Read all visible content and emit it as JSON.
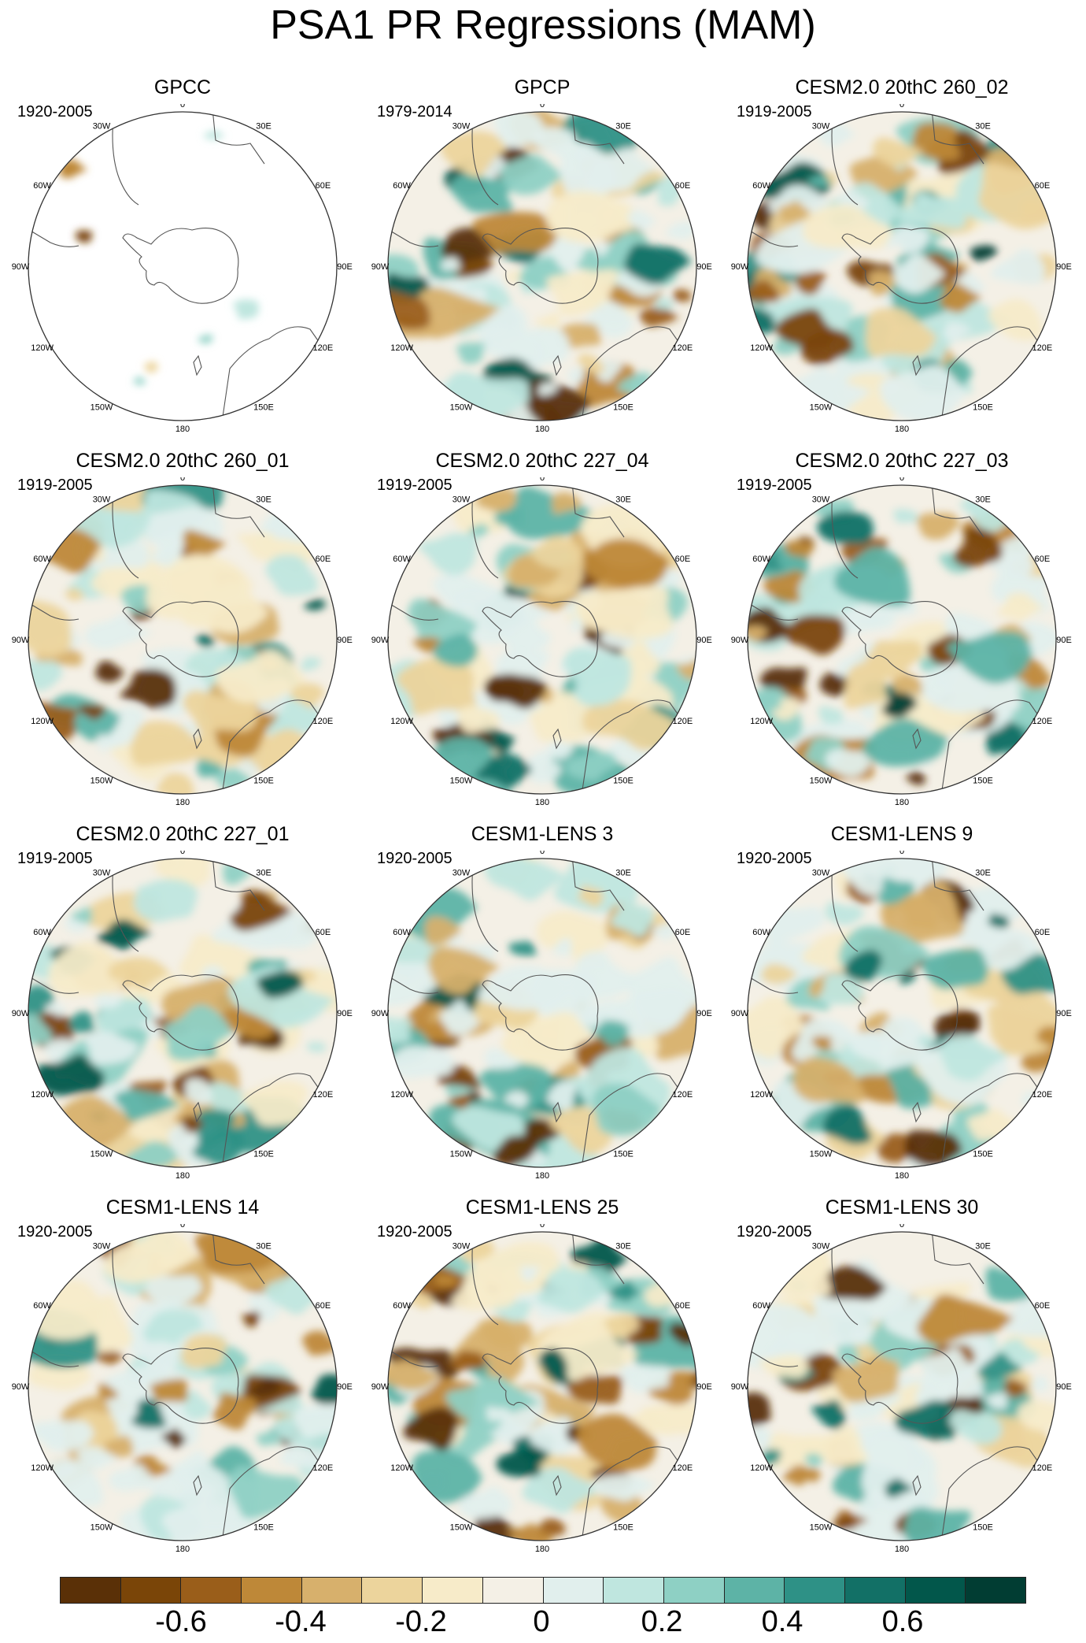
{
  "figure": {
    "title": "PSA1 PR Regressions (MAM)"
  },
  "longitude_labels": [
    "0",
    "30E",
    "60E",
    "90E",
    "120E",
    "150E",
    "180",
    "150W",
    "120W",
    "90W",
    "60W",
    "30W"
  ],
  "panels": [
    {
      "title": "GPCC",
      "period": "1920-2005",
      "coverage": "land-only"
    },
    {
      "title": "GPCP",
      "period": "1979-2014",
      "coverage": "full"
    },
    {
      "title": "CESM2.0 20thC 260_02",
      "period": "1919-2005",
      "coverage": "full"
    },
    {
      "title": "CESM2.0 20thC 260_01",
      "period": "1919-2005",
      "coverage": "full"
    },
    {
      "title": "CESM2.0 20thC 227_04",
      "period": "1919-2005",
      "coverage": "full"
    },
    {
      "title": "CESM2.0 20thC 227_03",
      "period": "1919-2005",
      "coverage": "full"
    },
    {
      "title": "CESM2.0 20thC 227_01",
      "period": "1919-2005",
      "coverage": "full"
    },
    {
      "title": "CESM1-LENS 3",
      "period": "1920-2005",
      "coverage": "full"
    },
    {
      "title": "CESM1-LENS 9",
      "period": "1920-2005",
      "coverage": "full"
    },
    {
      "title": "CESM1-LENS 14",
      "period": "1920-2005",
      "coverage": "full"
    },
    {
      "title": "CESM1-LENS 25",
      "period": "1920-2005",
      "coverage": "full"
    },
    {
      "title": "CESM1-LENS 30",
      "period": "1920-2005",
      "coverage": "full"
    }
  ],
  "colorbar": {
    "colors": [
      "#5a3007",
      "#7a4508",
      "#9a5e1a",
      "#be8838",
      "#d7b06c",
      "#ecd49c",
      "#f7ebc9",
      "#f4f0e6",
      "#e1efed",
      "#bfe6df",
      "#8ed0c4",
      "#5db3a6",
      "#2e9186",
      "#127066",
      "#02574b",
      "#013d33"
    ],
    "labels": [
      "-0.6",
      "-0.4",
      "-0.2",
      "0",
      "0.2",
      "0.4",
      "0.6"
    ]
  }
}
